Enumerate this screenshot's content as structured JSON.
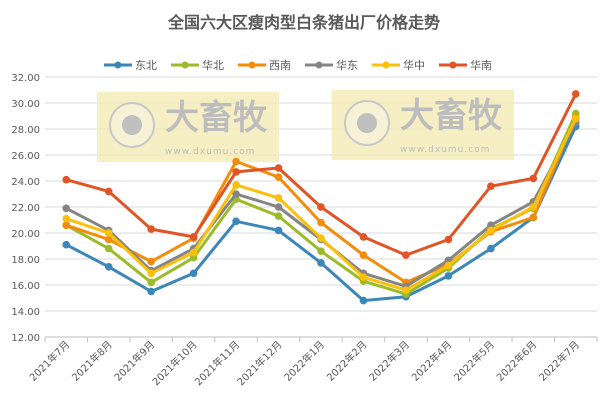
{
  "chart_data": {
    "type": "line",
    "title": "全国六大区瘦肉型白条猪出厂价格走势",
    "xlabel": "",
    "ylabel": "",
    "ylim": [
      12,
      32
    ],
    "yticks": [
      "12.00",
      "14.00",
      "16.00",
      "18.00",
      "20.00",
      "22.00",
      "24.00",
      "26.00",
      "28.00",
      "30.00",
      "32.00"
    ],
    "grid": true,
    "legend": "top",
    "categories": [
      "2021年7月",
      "2021年8月",
      "2021年9月",
      "2021年10月",
      "2021年11月",
      "2021年12月",
      "2022年1月",
      "2022年2月",
      "2022年3月",
      "2022年4月",
      "2022年5月",
      "2022年6月",
      "2022年7月"
    ],
    "series": [
      {
        "name": "东北",
        "color": "#3a87b8",
        "values": [
          19.1,
          17.4,
          15.5,
          16.9,
          20.9,
          20.2,
          17.7,
          14.8,
          15.1,
          16.7,
          18.8,
          21.2,
          28.2
        ]
      },
      {
        "name": "华北",
        "color": "#9bbb2a",
        "values": [
          20.6,
          18.8,
          16.2,
          18.1,
          22.6,
          21.3,
          18.6,
          16.3,
          15.3,
          17.3,
          20.3,
          21.9,
          29.2
        ]
      },
      {
        "name": "西南",
        "color": "#f28c0a",
        "values": [
          20.6,
          19.5,
          17.8,
          19.6,
          25.5,
          24.3,
          20.8,
          18.3,
          16.2,
          17.6,
          20.1,
          21.2,
          28.9
        ]
      },
      {
        "name": "华东",
        "color": "#858585",
        "values": [
          21.9,
          20.2,
          17.1,
          18.8,
          23.0,
          22.0,
          19.5,
          16.9,
          15.9,
          17.9,
          20.6,
          22.4,
          28.5
        ]
      },
      {
        "name": "华中",
        "color": "#fbc00a",
        "values": [
          21.1,
          20.0,
          16.9,
          18.5,
          23.7,
          22.7,
          19.6,
          16.6,
          15.6,
          17.5,
          20.2,
          22.0,
          28.8
        ]
      },
      {
        "name": "华南",
        "color": "#e05426",
        "values": [
          24.1,
          23.2,
          20.3,
          19.7,
          24.7,
          25.0,
          22.0,
          19.7,
          18.3,
          19.5,
          23.6,
          24.2,
          30.7
        ]
      }
    ]
  },
  "watermark": {
    "name": "大畜牧",
    "url": "www.dxumu.com"
  }
}
